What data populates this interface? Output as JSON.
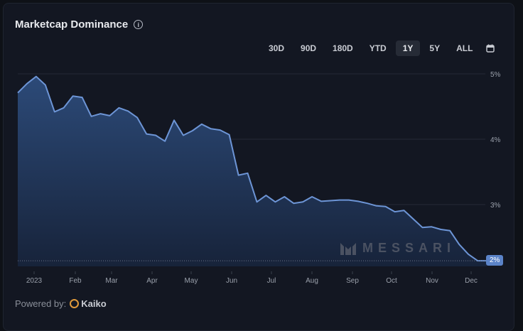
{
  "header": {
    "title": "Marketcap Dominance",
    "info_icon": "info-circle-icon"
  },
  "ranges": {
    "items": [
      "30D",
      "90D",
      "180D",
      "YTD",
      "1Y",
      "5Y",
      "ALL"
    ],
    "active": "1Y",
    "calendar_icon": "calendar-icon"
  },
  "footer": {
    "powered_by": "Powered by:",
    "provider": "Kaiko"
  },
  "watermark": "MESSARI",
  "current_value_badge": "2%",
  "colors": {
    "line": "#6d95d6",
    "fill_top": "#2c4a78",
    "fill_bottom": "#17233a",
    "badge": "#5b83c8",
    "background": "#131722"
  },
  "chart_data": {
    "type": "area",
    "title": "Marketcap Dominance",
    "xlabel": "",
    "ylabel": "",
    "ylim": [
      2,
      5
    ],
    "y_ticks": [
      "5%",
      "4%",
      "3%",
      "2%"
    ],
    "x_ticks": [
      "2023",
      "Feb",
      "Mar",
      "Apr",
      "May",
      "Jun",
      "Jul",
      "Aug",
      "Sep",
      "Oct",
      "Nov",
      "Dec"
    ],
    "grid": true,
    "legend": "none",
    "series": [
      {
        "name": "Marketcap Dominance (%)",
        "x": [
          "2022-12-26",
          "2023-01-02",
          "2023-01-09",
          "2023-01-16",
          "2023-01-23",
          "2023-01-30",
          "2023-02-06",
          "2023-02-13",
          "2023-02-20",
          "2023-02-27",
          "2023-03-06",
          "2023-03-13",
          "2023-03-20",
          "2023-03-27",
          "2023-04-03",
          "2023-04-10",
          "2023-04-17",
          "2023-04-24",
          "2023-05-01",
          "2023-05-08",
          "2023-05-15",
          "2023-05-22",
          "2023-05-29",
          "2023-06-05",
          "2023-06-12",
          "2023-06-19",
          "2023-06-26",
          "2023-07-03",
          "2023-07-10",
          "2023-07-17",
          "2023-07-24",
          "2023-07-31",
          "2023-08-07",
          "2023-08-14",
          "2023-08-21",
          "2023-08-28",
          "2023-09-04",
          "2023-09-11",
          "2023-09-18",
          "2023-09-25",
          "2023-10-02",
          "2023-10-09",
          "2023-10-16",
          "2023-10-23",
          "2023-10-30",
          "2023-11-06",
          "2023-11-13",
          "2023-11-20",
          "2023-11-27",
          "2023-12-04",
          "2023-12-11",
          "2023-12-18"
        ],
        "values": [
          4.71,
          4.85,
          4.96,
          4.83,
          4.42,
          4.48,
          4.66,
          4.64,
          4.35,
          4.39,
          4.36,
          4.48,
          4.43,
          4.33,
          4.08,
          4.06,
          3.97,
          4.29,
          4.06,
          4.13,
          4.23,
          4.16,
          4.14,
          4.07,
          3.45,
          3.48,
          3.04,
          3.14,
          3.04,
          3.12,
          3.02,
          3.04,
          3.12,
          3.05,
          3.06,
          3.07,
          3.07,
          3.05,
          3.02,
          2.98,
          2.97,
          2.89,
          2.91,
          2.78,
          2.65,
          2.66,
          2.62,
          2.6,
          2.39,
          2.24,
          2.14,
          2.14
        ]
      }
    ],
    "current_value": "2%"
  }
}
